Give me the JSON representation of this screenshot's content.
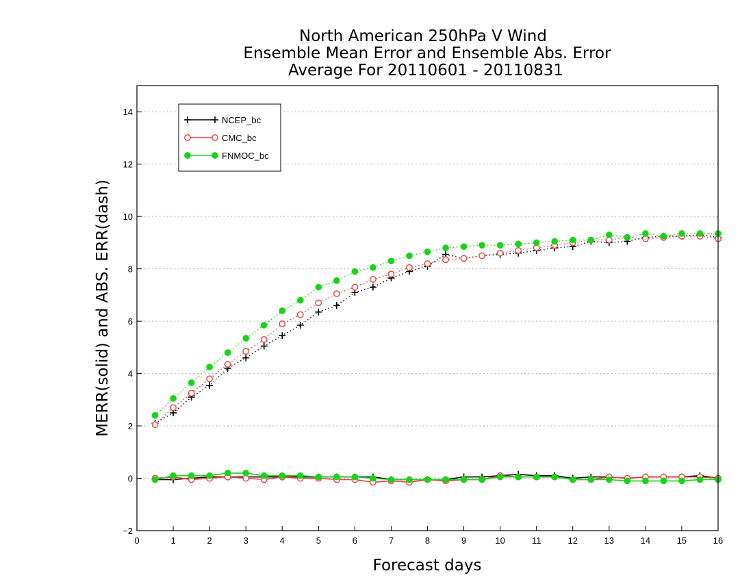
{
  "chart_data": {
    "type": "line",
    "title": [
      "North American 250hPa V Wind",
      "Ensemble Mean Error and Ensemble Abs. Error",
      "Average For 20110601 - 20110831"
    ],
    "xlabel": "Forecast days",
    "ylabel": "MERR(solid) and ABS. ERR(dash)",
    "xlim": [
      0,
      16
    ],
    "ylim": [
      -2,
      15
    ],
    "xticks": [
      0,
      1,
      2,
      3,
      4,
      5,
      6,
      7,
      8,
      9,
      10,
      11,
      12,
      13,
      14,
      15,
      16
    ],
    "yticks": [
      -2,
      0,
      2,
      4,
      6,
      8,
      10,
      12,
      14
    ],
    "grid": "horizontal dotted",
    "legend_position": "top-left",
    "x": [
      0.5,
      1,
      1.5,
      2,
      2.5,
      3,
      3.5,
      4,
      4.5,
      5,
      5.5,
      6,
      6.5,
      7,
      7.5,
      8,
      8.5,
      9,
      9.5,
      10,
      10.5,
      11,
      11.5,
      12,
      12.5,
      13,
      13.5,
      14,
      14.5,
      15,
      15.5,
      16
    ],
    "series": [
      {
        "name": "NCEP_bc",
        "color": "#000000",
        "marker": "plus",
        "abs_err": [
          2.1,
          2.5,
          3.1,
          3.55,
          4.2,
          4.6,
          5.05,
          5.45,
          5.85,
          6.35,
          6.6,
          7.1,
          7.3,
          7.65,
          7.9,
          8.1,
          8.55,
          8.4,
          8.5,
          8.55,
          8.6,
          8.7,
          8.8,
          8.85,
          9.05,
          9.0,
          9.05,
          9.2,
          9.25,
          9.25,
          9.3,
          9.2
        ],
        "mean_err": [
          -0.05,
          -0.05,
          0.0,
          0.05,
          0.05,
          0.05,
          0.05,
          0.05,
          0.05,
          0.05,
          0.05,
          0.05,
          0.05,
          -0.05,
          -0.05,
          -0.05,
          -0.05,
          0.05,
          0.05,
          0.1,
          0.15,
          0.1,
          0.1,
          0.0,
          0.05,
          0.05,
          0.0,
          0.05,
          0.05,
          0.05,
          0.1,
          0.0
        ]
      },
      {
        "name": "CMC_bc",
        "color": "#e8403e",
        "marker": "open-circle",
        "abs_err": [
          2.05,
          2.7,
          3.25,
          3.8,
          4.35,
          4.85,
          5.3,
          5.9,
          6.25,
          6.7,
          7.05,
          7.3,
          7.6,
          7.8,
          8.05,
          8.2,
          8.35,
          8.4,
          8.5,
          8.6,
          8.7,
          8.8,
          8.9,
          9.0,
          9.1,
          9.1,
          9.2,
          9.15,
          9.2,
          9.25,
          9.25,
          9.15
        ],
        "mean_err": [
          0.0,
          0.05,
          -0.05,
          0.0,
          0.05,
          0.0,
          -0.05,
          0.05,
          0.0,
          0.0,
          -0.05,
          -0.05,
          -0.15,
          -0.1,
          -0.15,
          -0.05,
          -0.1,
          -0.05,
          -0.05,
          0.1,
          0.05,
          0.05,
          0.05,
          -0.05,
          -0.05,
          0.05,
          0.0,
          0.05,
          0.05,
          0.05,
          0.05,
          0.0
        ]
      },
      {
        "name": "FNMOC_bc",
        "color": "#18d418",
        "marker": "filled-circle",
        "abs_err": [
          2.4,
          3.05,
          3.65,
          4.25,
          4.8,
          5.35,
          5.85,
          6.4,
          6.8,
          7.3,
          7.55,
          7.9,
          8.05,
          8.3,
          8.5,
          8.65,
          8.8,
          8.85,
          8.9,
          8.9,
          8.95,
          9.0,
          9.05,
          9.1,
          9.1,
          9.3,
          9.2,
          9.35,
          9.25,
          9.35,
          9.35,
          9.35
        ],
        "mean_err": [
          -0.05,
          0.1,
          0.1,
          0.1,
          0.2,
          0.2,
          0.1,
          0.1,
          0.1,
          0.05,
          0.05,
          0.05,
          0.0,
          -0.05,
          -0.05,
          -0.05,
          -0.05,
          -0.05,
          -0.05,
          0.05,
          0.05,
          0.05,
          0.05,
          -0.05,
          -0.05,
          -0.05,
          -0.1,
          -0.1,
          -0.1,
          -0.1,
          -0.05,
          -0.05
        ]
      }
    ]
  }
}
